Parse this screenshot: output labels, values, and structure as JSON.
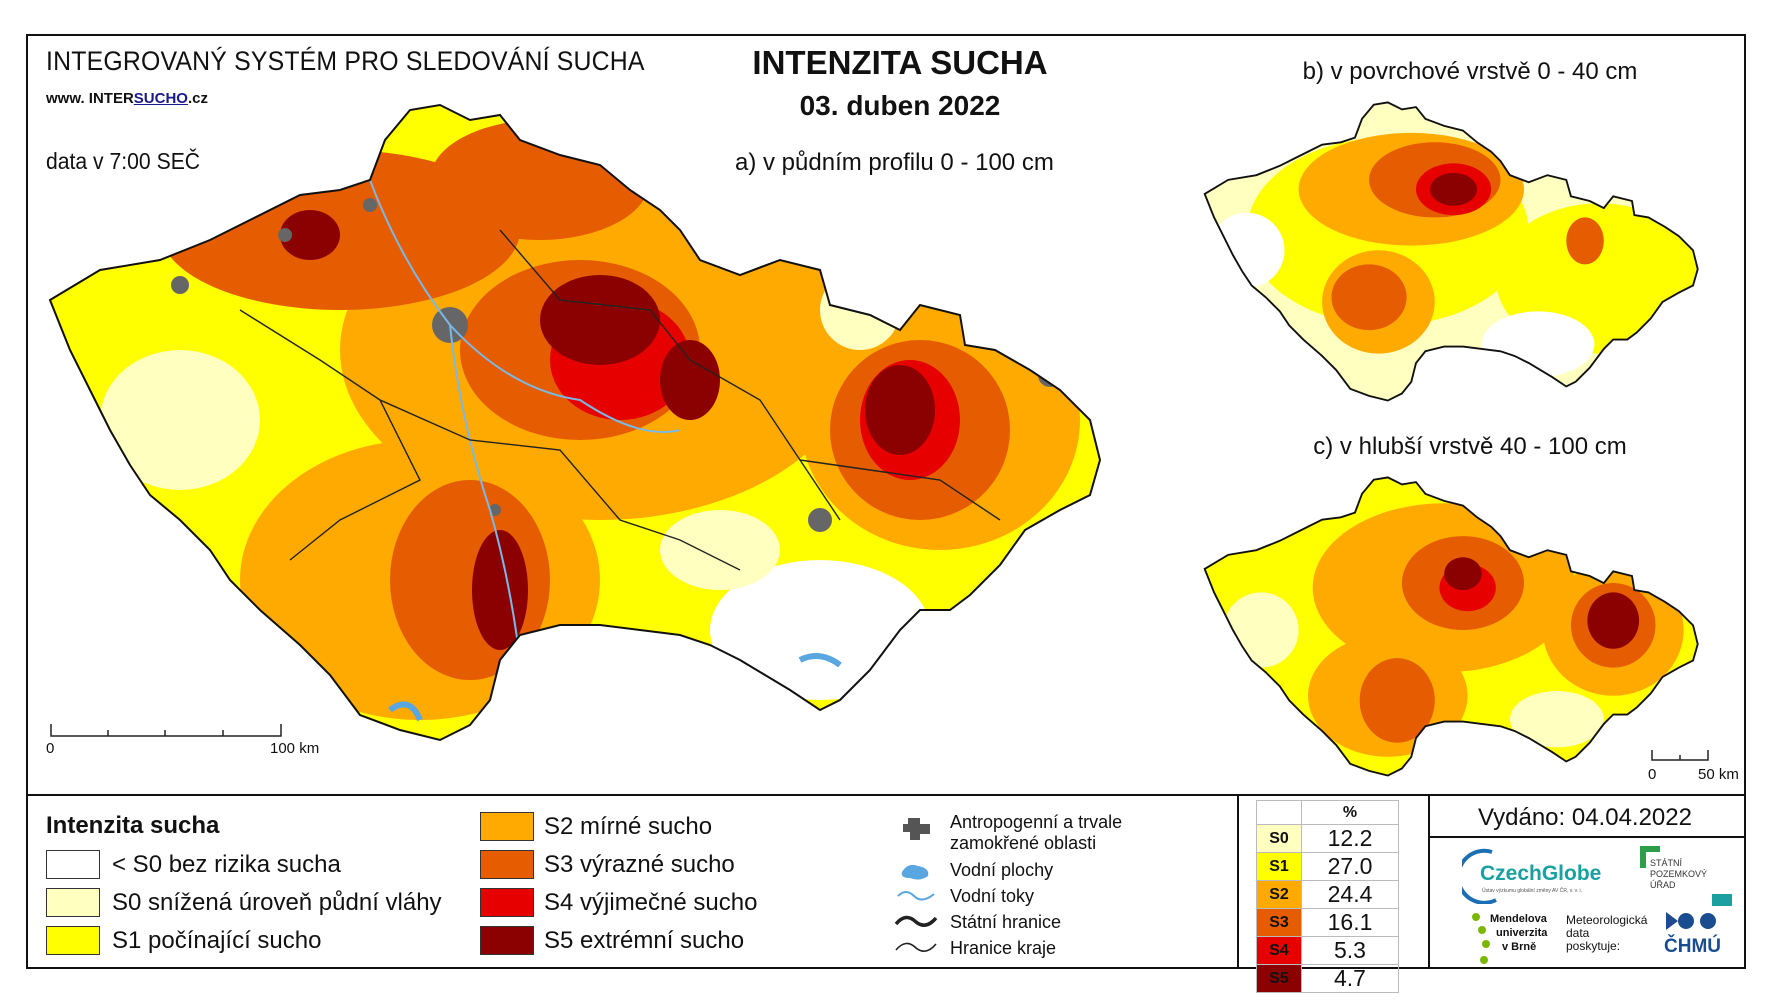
{
  "header": {
    "system_title": "INTEGROVANÝ SYSTÉM PRO SLEDOVÁNÍ SUCHA",
    "url_prefix": "www. INTER",
    "url_mid": "SUCHO",
    "url_suffix": ".cz",
    "data_time": "data v 7:00 SEČ",
    "main_title": "INTENZITA SUCHA",
    "date": "03. duben 2022"
  },
  "maps": {
    "a_title": "a) v půdním profilu 0 - 100 cm",
    "b_title": "b) v povrchové vrstvě 0 - 40 cm",
    "c_title": "c) v hlubší vrstvě 40 - 100 cm",
    "scale_main": {
      "start": "0",
      "end": "100 km"
    },
    "scale_small": {
      "start": "0",
      "end": "50 km"
    }
  },
  "legend": {
    "title": "Intenzita sucha",
    "classes": [
      {
        "code": "<S0",
        "label": "< S0 bez rizika sucha",
        "color": "#ffffff"
      },
      {
        "code": "S0",
        "label": "S0 snížená úroveň půdní vláhy",
        "color": "#ffffc0"
      },
      {
        "code": "S1",
        "label": "S1 počínající sucho",
        "color": "#ffff00"
      },
      {
        "code": "S2",
        "label": "S2 mírné sucho",
        "color": "#ffaa00"
      },
      {
        "code": "S3",
        "label": "S3 výrazné sucho",
        "color": "#e65c00"
      },
      {
        "code": "S4",
        "label": "S4 výjimečné sucho",
        "color": "#e60000"
      },
      {
        "code": "S5",
        "label": "S5 extrémní sucho",
        "color": "#8b0000"
      }
    ],
    "symbols": {
      "anthropogenic": "Antropogenní a trvale zamokřené oblasti",
      "anthropogenic_line1": "Antropogenní a trvale",
      "anthropogenic_line2": "zamokřené oblasti",
      "water_bodies": "Vodní plochy",
      "water_streams": "Vodní toky",
      "state_border": "Státní hranice",
      "region_border": "Hranice kraje"
    }
  },
  "percent_table": {
    "header": "%",
    "rows": [
      {
        "code": "S0",
        "value": "12.2",
        "color": "#ffffc0"
      },
      {
        "code": "S1",
        "value": "27.0",
        "color": "#ffff00"
      },
      {
        "code": "S2",
        "value": "24.4",
        "color": "#ffaa00"
      },
      {
        "code": "S3",
        "value": "16.1",
        "color": "#e65c00"
      },
      {
        "code": "S4",
        "value": "5.3",
        "color": "#e60000"
      },
      {
        "code": "S5",
        "value": "4.7",
        "color": "#8b0000"
      }
    ]
  },
  "footer": {
    "issued": "Vydáno: 04.04.2022",
    "czechglobe": "CzechGlobe",
    "czechglobe_sub": "Ústav výzkumu globální změny AV ČR, v. v. i.",
    "spu_line1": "STÁTNÍ",
    "spu_line2": "POZEMKOVÝ",
    "spu_line3": "ÚŘAD",
    "mendel_line1": "Mendelova",
    "mendel_line2": "univerzita",
    "mendel_line3": "v Brně",
    "meteo_line1": "Meteorologická",
    "meteo_line2": "data",
    "meteo_line3": "poskytuje:",
    "chmu": "ČHMÚ"
  }
}
